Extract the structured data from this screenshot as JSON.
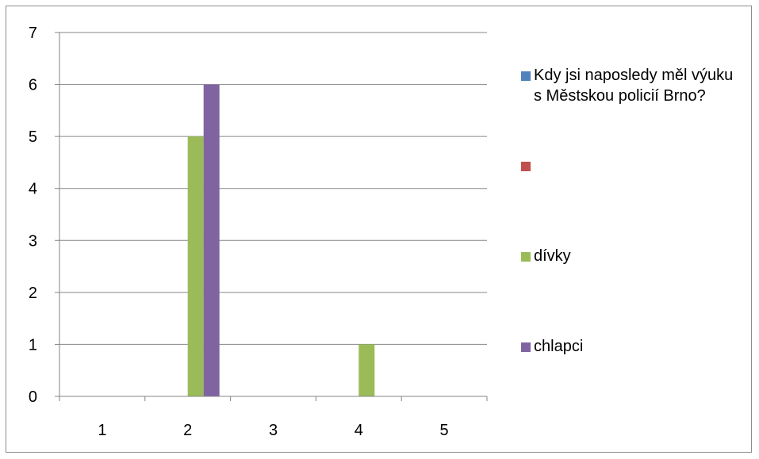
{
  "chart_data": {
    "type": "bar",
    "categories": [
      "1",
      "2",
      "3",
      "4",
      "5"
    ],
    "series": [
      {
        "name": "Kdy jsi naposledy měl výuku s Městskou policií Brno?",
        "color": "#4F81BD",
        "values": [
          0,
          0,
          0,
          0,
          0
        ]
      },
      {
        "name": "",
        "color": "#C0504D",
        "values": [
          0,
          0,
          0,
          0,
          0
        ]
      },
      {
        "name": "dívky",
        "color": "#9BBB59",
        "values": [
          0,
          5,
          0,
          1,
          0
        ]
      },
      {
        "name": "chlapci",
        "color": "#8064A2",
        "values": [
          0,
          6,
          0,
          0,
          0
        ]
      }
    ],
    "ylim": [
      0,
      7
    ],
    "yticks": [
      0,
      1,
      2,
      3,
      4,
      5,
      6,
      7
    ],
    "grid": true,
    "legend": "right",
    "title": "",
    "xlabel": "",
    "ylabel": ""
  }
}
